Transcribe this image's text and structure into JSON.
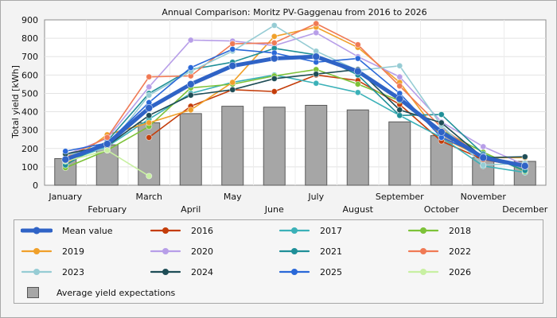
{
  "chart_data": {
    "type": "line",
    "title": "Annual Comparison: Moritz PV-Gaggenau from 2016 to 2026",
    "xlabel": "",
    "ylabel": "Total yield [kWh]",
    "ylim": [
      0,
      900
    ],
    "yticks": [
      0,
      100,
      200,
      300,
      400,
      500,
      600,
      700,
      800,
      900
    ],
    "grid": true,
    "legend_position": "bottom",
    "categories": [
      "January",
      "February",
      "March",
      "April",
      "May",
      "June",
      "July",
      "August",
      "September",
      "October",
      "November",
      "December"
    ],
    "bars": {
      "name": "Average yield expectations",
      "color": "#a6a6a6",
      "values": [
        145,
        220,
        340,
        390,
        430,
        425,
        435,
        410,
        345,
        270,
        150,
        130
      ]
    },
    "series": [
      {
        "name": "Mean value",
        "color": "#2f63c6",
        "emphasis": true,
        "values": [
          140,
          225,
          420,
          550,
          650,
          690,
          700,
          620,
          470,
          290,
          150,
          105
        ]
      },
      {
        "name": "2016",
        "color": "#c43d0a",
        "values": [
          null,
          null,
          260,
          430,
          520,
          510,
          600,
          570,
          440,
          240,
          140,
          100
        ]
      },
      {
        "name": "2017",
        "color": "#3bb1b8",
        "values": [
          130,
          210,
          360,
          500,
          560,
          600,
          555,
          505,
          380,
          260,
          105,
          70
        ]
      },
      {
        "name": "2018",
        "color": "#7dc238",
        "values": [
          95,
          190,
          320,
          530,
          550,
          595,
          630,
          550,
          460,
          300,
          180,
          75
        ]
      },
      {
        "name": "2019",
        "color": "#f0a02a",
        "values": [
          110,
          275,
          340,
          410,
          560,
          810,
          860,
          750,
          560,
          260,
          150,
          150
        ]
      },
      {
        "name": "2020",
        "color": "#b79ee8",
        "values": [
          165,
          255,
          535,
          790,
          785,
          760,
          830,
          700,
          590,
          345,
          210,
          110
        ]
      },
      {
        "name": "2021",
        "color": "#1f8f98",
        "values": [
          110,
          240,
          500,
          630,
          670,
          745,
          710,
          600,
          380,
          385,
          170,
          80
        ]
      },
      {
        "name": "2022",
        "color": "#f07a55",
        "values": [
          150,
          260,
          590,
          595,
          770,
          775,
          880,
          765,
          540,
          315,
          150,
          100
        ]
      },
      {
        "name": "2023",
        "color": "#96ccd4",
        "values": [
          165,
          200,
          490,
          620,
          730,
          870,
          730,
          625,
          650,
          325,
          110,
          120
        ]
      },
      {
        "name": "2024",
        "color": "#1e4d56",
        "values": [
          170,
          215,
          380,
          490,
          520,
          580,
          605,
          630,
          410,
          340,
          150,
          155
        ]
      },
      {
        "name": "2025",
        "color": "#2a68d8",
        "values": [
          185,
          230,
          450,
          640,
          740,
          720,
          670,
          690,
          500,
          260,
          160,
          105
        ]
      },
      {
        "name": "2026",
        "color": "#c8f0a2",
        "values": [
          130,
          190,
          50,
          null,
          null,
          null,
          null,
          null,
          null,
          null,
          null,
          null
        ]
      }
    ]
  }
}
